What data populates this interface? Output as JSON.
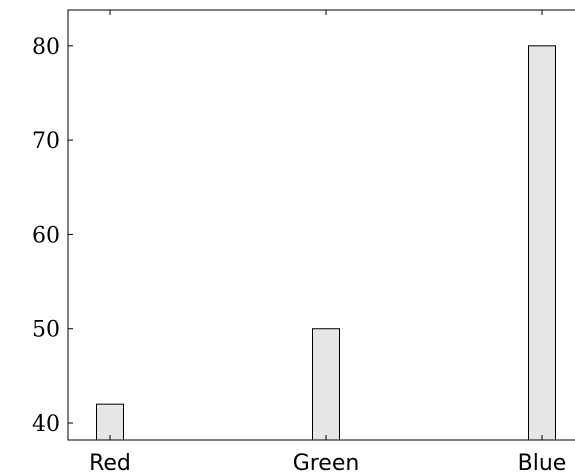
{
  "chart_data": {
    "type": "bar",
    "categories": [
      "Red",
      "Green",
      "Blue"
    ],
    "values": [
      42,
      50,
      80
    ],
    "ylim": [
      38.2,
      83.8
    ],
    "yticks": [
      "40",
      "50",
      "60",
      "70",
      "80"
    ],
    "bar_fill": "#e6e6e6",
    "bar_stroke": "#000000",
    "grid": false
  }
}
